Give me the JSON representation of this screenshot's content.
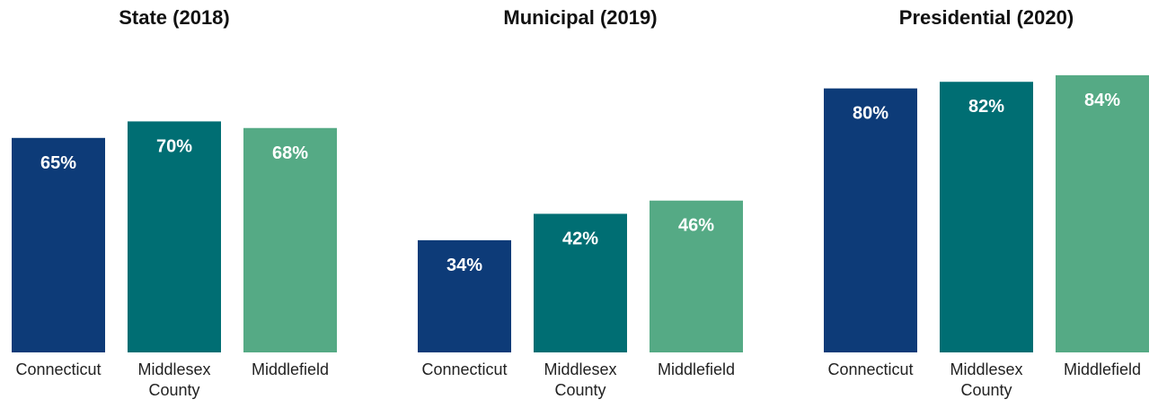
{
  "chart_data": [
    {
      "type": "bar",
      "title": "State (2018)",
      "categories": [
        [
          "Connecticut"
        ],
        [
          "Middlesex",
          "County"
        ],
        [
          "Middlefield"
        ]
      ],
      "values": [
        65,
        70,
        68
      ],
      "value_labels": [
        "65%",
        "70%",
        "68%"
      ],
      "unit": "%",
      "ylim": [
        0,
        100
      ],
      "grid": false,
      "legend": "none"
    },
    {
      "type": "bar",
      "title": "Municipal (2019)",
      "categories": [
        [
          "Connecticut"
        ],
        [
          "Middlesex",
          "County"
        ],
        [
          "Middlefield"
        ]
      ],
      "values": [
        34,
        42,
        46
      ],
      "value_labels": [
        "34%",
        "42%",
        "46%"
      ],
      "unit": "%",
      "ylim": [
        0,
        100
      ],
      "grid": false,
      "legend": "none"
    },
    {
      "type": "bar",
      "title": "Presidential (2020)",
      "categories": [
        [
          "Connecticut"
        ],
        [
          "Middlesex",
          "County"
        ],
        [
          "Middlefield"
        ]
      ],
      "values": [
        80,
        82,
        84
      ],
      "value_labels": [
        "80%",
        "82%",
        "84%"
      ],
      "unit": "%",
      "ylim": [
        0,
        100
      ],
      "grid": false,
      "legend": "none"
    }
  ],
  "colors": {
    "connecticut": "#0d3b78",
    "middlesex_county": "#006e73",
    "middlefield": "#55aa85"
  }
}
